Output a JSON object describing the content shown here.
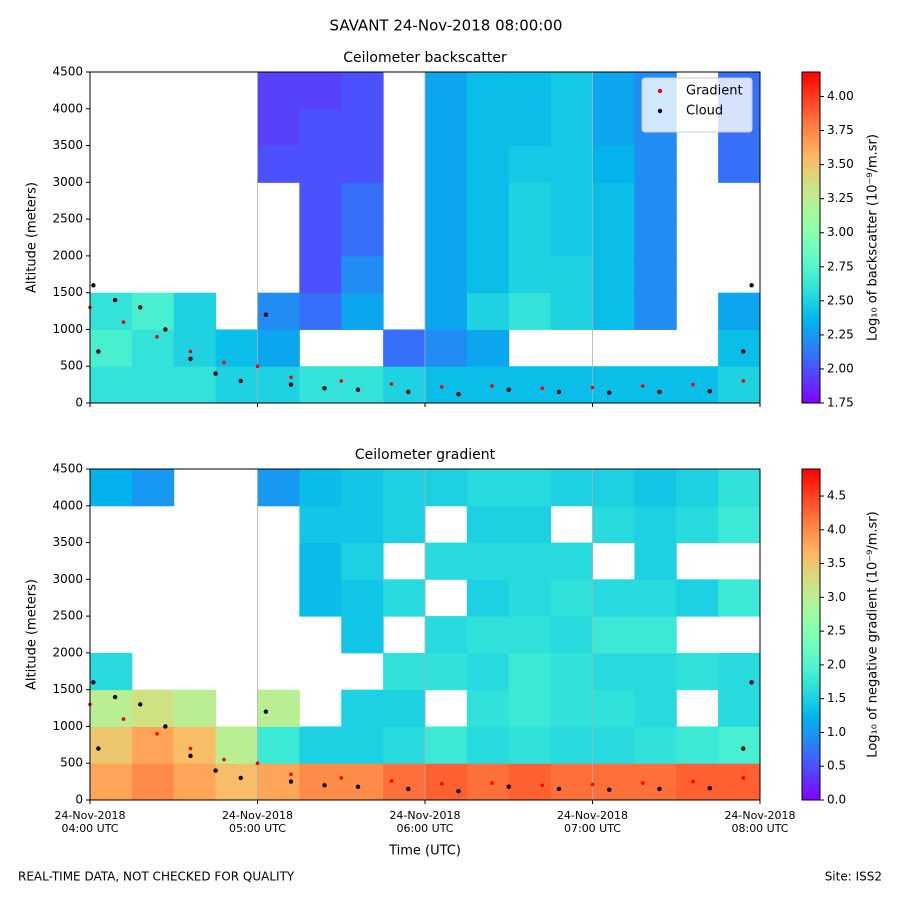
{
  "title": "SAVANT 24-Nov-2018 08:00:00",
  "footer": {
    "note": "REAL-TIME DATA, NOT CHECKED FOR QUALITY",
    "site": "Site: ISS2"
  },
  "chart_data": [
    {
      "type": "heatmap",
      "title": "Ceilometer backscatter",
      "y_label": "Altitude (meters)",
      "colorbar_label": "Log₁₀ of backscatter (10⁻⁹/m.sr)",
      "colormap": "rainbow",
      "grid": "x",
      "legend": "upper right",
      "xlim": [
        4,
        8
      ],
      "xticks": [
        4,
        5,
        6,
        7,
        8
      ],
      "ylim": [
        0,
        4500
      ],
      "yticks": [
        0,
        500,
        1000,
        1500,
        2000,
        2500,
        3000,
        3500,
        4000,
        4500
      ],
      "clim": [
        1.75,
        4.18
      ],
      "cticks": [
        1.75,
        {
          "value": 2,
          "label": "2.00"
        },
        2.25,
        {
          "value": 2.5,
          "label": "2.50"
        },
        2.75,
        {
          "value": 3,
          "label": "3.00"
        },
        3.25,
        {
          "value": 3.5,
          "label": "3.50"
        },
        3.75,
        {
          "value": 4,
          "label": "4.00"
        }
      ],
      "xbins": [
        4,
        4.25,
        4.5,
        4.75,
        5,
        5.25,
        5.5,
        5.75,
        6,
        6.25,
        6.5,
        6.75,
        7,
        7.25,
        7.5,
        7.75,
        8
      ],
      "ybins": [
        0,
        500,
        1000,
        1500,
        2000,
        2500,
        3000,
        3500,
        4000,
        4500
      ],
      "values": [
        [
          2.6,
          2.6,
          2.6,
          2.5,
          2.5,
          2.6,
          2.6,
          2.5,
          2.4,
          2.4,
          2.4,
          2.4,
          2.4,
          2.4,
          2.4,
          2.5
        ],
        [
          2.7,
          2.6,
          2.5,
          2.4,
          2.3,
          null,
          null,
          2.1,
          2.2,
          2.3,
          null,
          null,
          null,
          null,
          null,
          2.4
        ],
        [
          2.6,
          2.7,
          2.5,
          null,
          2.2,
          2.1,
          2.3,
          null,
          2.3,
          2.5,
          2.6,
          2.5,
          2.4,
          2.2,
          null,
          2.3
        ],
        [
          null,
          null,
          null,
          null,
          null,
          2.0,
          2.2,
          null,
          2.3,
          2.4,
          2.5,
          2.5,
          2.4,
          2.2,
          null,
          null
        ],
        [
          null,
          null,
          null,
          null,
          null,
          2.0,
          2.1,
          null,
          2.3,
          2.4,
          2.5,
          2.45,
          2.4,
          2.2,
          null,
          null
        ],
        [
          null,
          null,
          null,
          null,
          null,
          2.0,
          2.1,
          null,
          2.3,
          2.4,
          2.5,
          2.45,
          2.4,
          2.2,
          null,
          null
        ],
        [
          null,
          null,
          null,
          null,
          2.0,
          2.0,
          2.0,
          null,
          2.3,
          2.4,
          2.45,
          2.45,
          2.35,
          2.2,
          null,
          2.1
        ],
        [
          null,
          null,
          null,
          null,
          1.95,
          2.0,
          2.0,
          null,
          2.3,
          2.4,
          2.4,
          2.45,
          2.3,
          2.2,
          null,
          2.1
        ],
        [
          null,
          null,
          null,
          null,
          1.95,
          1.95,
          2.0,
          null,
          2.3,
          2.4,
          2.4,
          2.45,
          2.3,
          2.2,
          null,
          2.1
        ]
      ],
      "series": [
        {
          "name": "Gradient",
          "color": "#ff0000",
          "x": [
            4.0,
            4.2,
            4.4,
            4.6,
            4.8,
            5.0,
            5.2,
            5.5,
            5.8,
            6.1,
            6.4,
            6.7,
            7.0,
            7.3,
            7.6,
            7.9
          ],
          "values": [
            1300,
            1100,
            900,
            700,
            550,
            500,
            350,
            300,
            260,
            220,
            230,
            200,
            210,
            230,
            250,
            300
          ]
        },
        {
          "name": "Cloud",
          "color": "#000000",
          "x": [
            4.02,
            4.05,
            4.15,
            4.3,
            4.45,
            4.6,
            4.75,
            4.9,
            5.05,
            5.2,
            5.4,
            5.6,
            5.9,
            6.2,
            6.5,
            6.8,
            7.1,
            7.4,
            7.7,
            7.9,
            7.95
          ],
          "values": [
            1600,
            700,
            1400,
            1300,
            1000,
            600,
            400,
            300,
            1200,
            250,
            200,
            180,
            150,
            120,
            180,
            150,
            140,
            150,
            160,
            700,
            1600
          ]
        }
      ]
    },
    {
      "type": "heatmap",
      "title": "Ceilometer gradient",
      "y_label": "Altitude (meters)",
      "x_label": "Time (UTC)",
      "colorbar_label": "Log₁₀ of negative gradient (10⁻⁹/m.sr)",
      "colormap": "rainbow",
      "grid": "x",
      "xlim": [
        4,
        8
      ],
      "xticks": [
        {
          "value": 4,
          "label": "24-Nov-2018 04:00 UTC"
        },
        {
          "value": 5,
          "label": "24-Nov-2018 05:00 UTC"
        },
        {
          "value": 6,
          "label": "24-Nov-2018 06:00 UTC"
        },
        {
          "value": 7,
          "label": "24-Nov-2018 07:00 UTC"
        },
        {
          "value": 8,
          "label": "24-Nov-2018 08:00 UTC"
        }
      ],
      "ylim": [
        0,
        4500
      ],
      "yticks": [
        0,
        500,
        1000,
        1500,
        2000,
        2500,
        3000,
        3500,
        4000,
        4500
      ],
      "clim": [
        0,
        4.9
      ],
      "cticks": [
        {
          "value": 0,
          "label": "0.0"
        },
        0.5,
        {
          "value": 1,
          "label": "1.0"
        },
        1.5,
        {
          "value": 2,
          "label": "2.0"
        },
        2.5,
        {
          "value": 3,
          "label": "3.0"
        },
        3.5,
        {
          "value": 4,
          "label": "4.0"
        },
        4.5
      ],
      "xbins": [
        4,
        4.25,
        4.5,
        4.75,
        5,
        5.25,
        5.5,
        5.75,
        6,
        6.25,
        6.5,
        6.75,
        7,
        7.25,
        7.5,
        7.75,
        8
      ],
      "ybins": [
        0,
        500,
        1000,
        1500,
        2000,
        2500,
        3000,
        3500,
        4000,
        4500
      ],
      "values": [
        [
          3.8,
          4.0,
          3.8,
          3.6,
          3.8,
          4.0,
          4.0,
          4.2,
          4.3,
          4.2,
          4.3,
          4.2,
          4.2,
          4.2,
          4.3,
          4.3
        ],
        [
          3.5,
          3.8,
          3.6,
          3.0,
          1.8,
          1.5,
          1.5,
          1.6,
          1.8,
          1.6,
          1.7,
          1.6,
          1.6,
          1.7,
          1.8,
          1.9
        ],
        [
          3.0,
          3.2,
          3.0,
          null,
          3.0,
          null,
          1.5,
          1.5,
          null,
          1.7,
          1.8,
          1.7,
          1.7,
          1.6,
          null,
          1.6
        ],
        [
          1.6,
          null,
          null,
          null,
          null,
          null,
          null,
          1.7,
          1.7,
          1.6,
          1.8,
          1.7,
          1.6,
          1.6,
          1.7,
          1.6
        ],
        [
          null,
          null,
          null,
          null,
          null,
          null,
          1.4,
          null,
          1.6,
          1.7,
          1.7,
          1.6,
          1.8,
          1.8,
          null,
          null
        ],
        [
          null,
          null,
          null,
          null,
          null,
          1.3,
          1.4,
          1.6,
          null,
          1.5,
          1.6,
          1.7,
          1.6,
          1.6,
          1.5,
          1.8
        ],
        [
          null,
          null,
          null,
          null,
          null,
          1.3,
          1.5,
          null,
          1.6,
          1.6,
          1.6,
          1.6,
          null,
          1.5,
          null,
          null
        ],
        [
          null,
          null,
          null,
          null,
          null,
          1.4,
          1.4,
          1.5,
          null,
          1.5,
          1.5,
          null,
          1.6,
          1.5,
          1.6,
          1.8
        ],
        [
          1.2,
          1.0,
          null,
          null,
          1.0,
          1.3,
          1.4,
          1.5,
          1.5,
          1.6,
          1.6,
          1.5,
          1.5,
          1.4,
          1.5,
          1.7
        ]
      ],
      "series": [
        {
          "name": "Gradient",
          "color": "#ff0000",
          "x": [
            4.0,
            4.2,
            4.4,
            4.6,
            4.8,
            5.0,
            5.2,
            5.5,
            5.8,
            6.1,
            6.4,
            6.7,
            7.0,
            7.3,
            7.6,
            7.9
          ],
          "values": [
            1300,
            1100,
            900,
            700,
            550,
            500,
            350,
            300,
            260,
            220,
            230,
            200,
            210,
            230,
            250,
            300
          ]
        },
        {
          "name": "Cloud",
          "color": "#000000",
          "x": [
            4.02,
            4.05,
            4.15,
            4.3,
            4.45,
            4.6,
            4.75,
            4.9,
            5.05,
            5.2,
            5.4,
            5.6,
            5.9,
            6.2,
            6.5,
            6.8,
            7.1,
            7.4,
            7.7,
            7.9,
            7.95
          ],
          "values": [
            1600,
            700,
            1400,
            1300,
            1000,
            600,
            400,
            300,
            1200,
            250,
            200,
            180,
            150,
            120,
            180,
            150,
            140,
            150,
            160,
            700,
            1600
          ]
        }
      ]
    }
  ]
}
